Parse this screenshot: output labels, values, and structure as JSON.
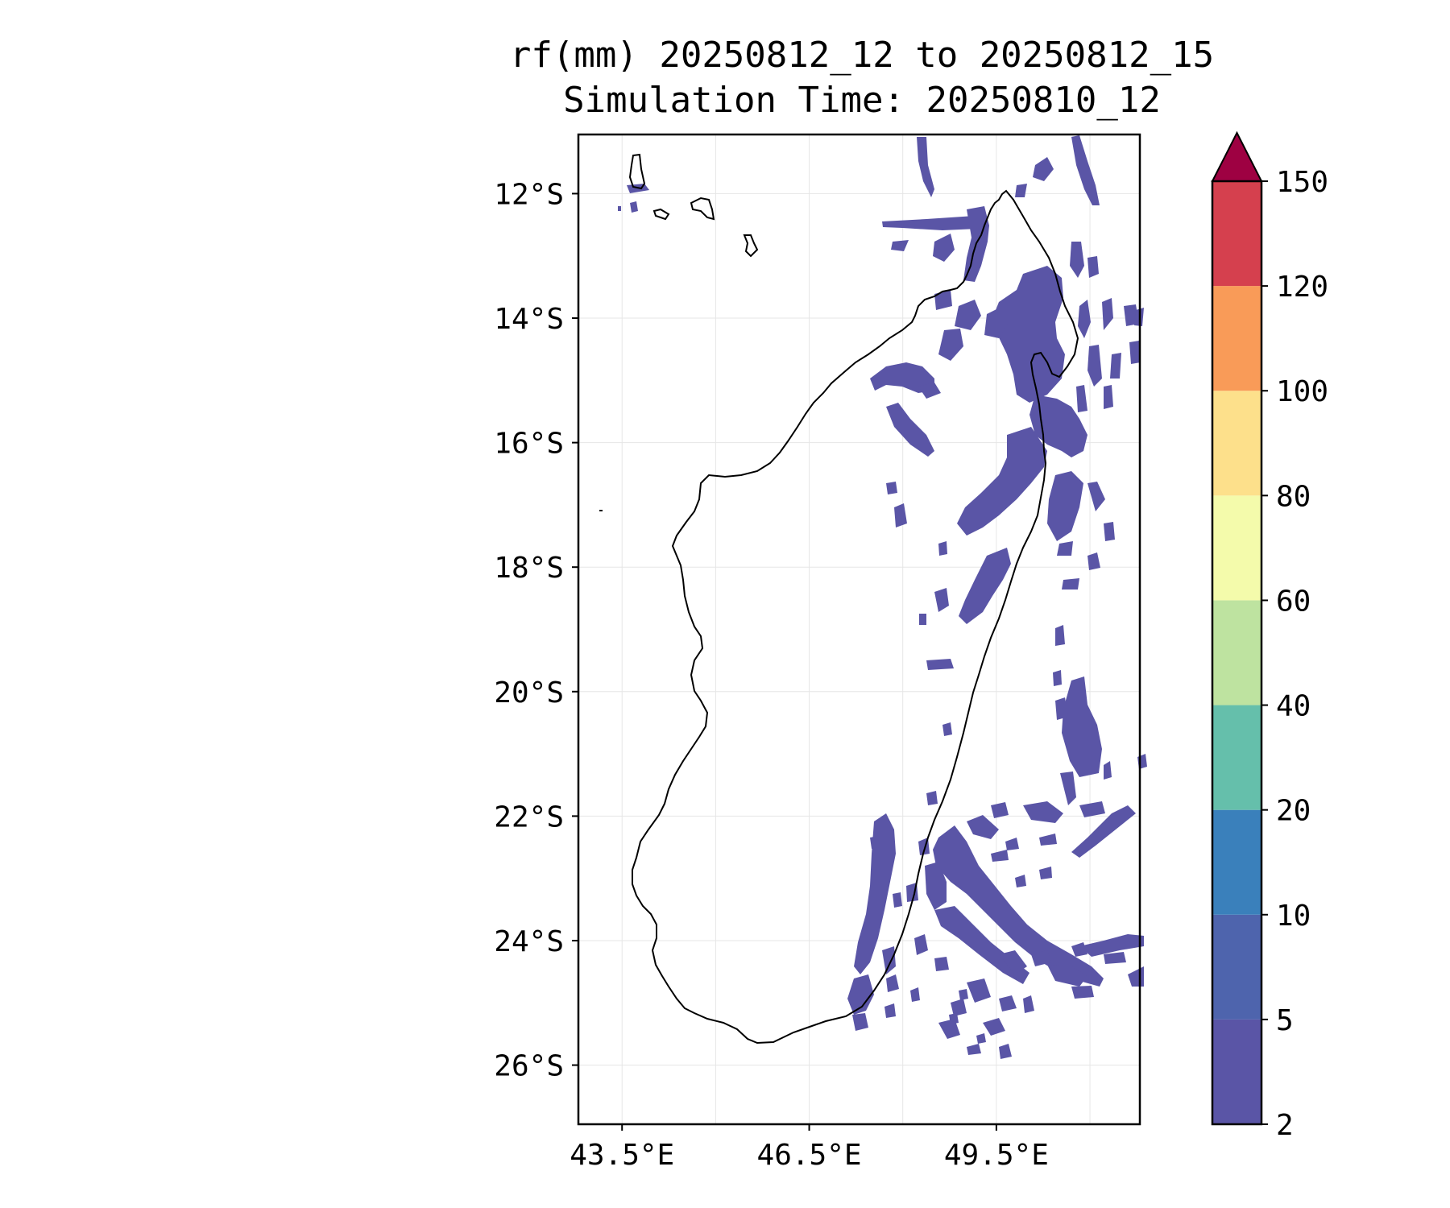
{
  "title": {
    "line1": "rf(mm) 20250812_12 to 20250812_15",
    "line2": "Simulation Time: 20250810_12"
  },
  "map": {
    "lon_range": [
      42.8,
      51.8
    ],
    "lat_range": [
      -26.95,
      -11.05
    ],
    "x_ticks": [
      {
        "value": 43.5,
        "label": "43.5°E"
      },
      {
        "value": 46.5,
        "label": "46.5°E"
      },
      {
        "value": 49.5,
        "label": "49.5°E"
      }
    ],
    "y_ticks": [
      {
        "value": -12,
        "label": "12°S"
      },
      {
        "value": -14,
        "label": "14°S"
      },
      {
        "value": -16,
        "label": "16°S"
      },
      {
        "value": -18,
        "label": "18°S"
      },
      {
        "value": -20,
        "label": "20°S"
      },
      {
        "value": -22,
        "label": "22°S"
      },
      {
        "value": -24,
        "label": "24°S"
      },
      {
        "value": -26,
        "label": "26°S"
      }
    ],
    "gridlines": true,
    "gridline_lons": [
      43.5,
      45.0,
      46.5,
      48.0,
      49.5,
      51.0
    ],
    "gridline_lats": [
      -12,
      -14,
      -16,
      -18,
      -20,
      -22,
      -24,
      -26
    ],
    "rain_color": "#5a55a6",
    "rain_color_alt": "#4e64ad"
  },
  "colorbar": {
    "levels": [
      "2",
      "5",
      "10",
      "20",
      "40",
      "60",
      "80",
      "100",
      "120",
      "150"
    ],
    "colors": [
      "#5a55a6",
      "#4e64ad",
      "#3a80bb",
      "#65bfab",
      "#bee3a0",
      "#f4fbab",
      "#fde08b",
      "#f99b58",
      "#d5404e"
    ],
    "extend_color": "#9e0142",
    "extend": "max"
  }
}
